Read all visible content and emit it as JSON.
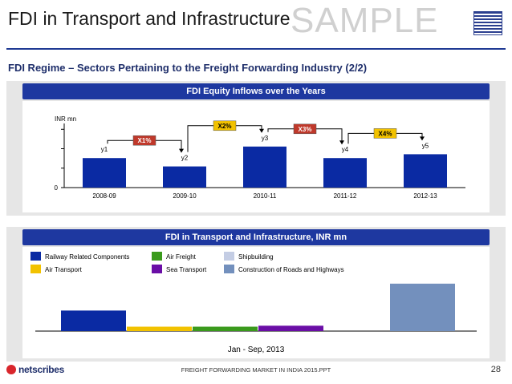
{
  "header": {
    "title": "FDI in Transport and Infrastructure",
    "watermark": "SAMPLE",
    "subtitle": "FDI Regime – Sectors Pertaining to the Freight Forwarding Industry (2/2)"
  },
  "panel1": {
    "title": "FDI Equity Inflows over the Years"
  },
  "panel2": {
    "title": "FDI in Transport and Infrastructure, INR mn"
  },
  "footer": {
    "brand": "netscribes",
    "text": "FREIGHT FORWARDING MARKET IN INDIA 2015.PPT",
    "page": "28"
  },
  "chart_data": [
    {
      "type": "bar",
      "title": "FDI Equity Inflows over the Years",
      "ylabel": "INR mn",
      "ylim": [
        0,
        10
      ],
      "y_tick_labels": [
        "0",
        "",
        "",
        ""
      ],
      "categories": [
        "2008-09",
        "2009-10",
        "2010-11",
        "2011-12",
        "2012-13"
      ],
      "values": [
        4.6,
        3.3,
        6.4,
        4.6,
        5.2
      ],
      "data_labels": [
        "y1",
        "y2",
        "y3",
        "y4",
        "y5"
      ],
      "color": "#0a2aa3",
      "growth_annotations": [
        {
          "label": "X1%",
          "from": 0,
          "to": 1,
          "color": "#c0392b",
          "text_color": "#ffffff"
        },
        {
          "label": "X2%",
          "from": 1,
          "to": 2,
          "color": "#f2c200",
          "text_color": "#000000"
        },
        {
          "label": "X3%",
          "from": 2,
          "to": 3,
          "color": "#c0392b",
          "text_color": "#ffffff"
        },
        {
          "label": "X4%",
          "from": 3,
          "to": 4,
          "color": "#f2c200",
          "text_color": "#000000"
        }
      ]
    },
    {
      "type": "bar",
      "title": "FDI in Transport and Infrastructure, INR mn",
      "xlabel": "Jan - Sep, 2013",
      "ylim": [
        0,
        100
      ],
      "legend_position": "top",
      "series": [
        {
          "name": "Railway Related Components",
          "value": 42,
          "color": "#0a2aa3"
        },
        {
          "name": "Air Transport",
          "value": 9,
          "color": "#f2c200"
        },
        {
          "name": "Air Freight",
          "value": 9,
          "color": "#3a9a1c"
        },
        {
          "name": "Sea Transport",
          "value": 11,
          "color": "#6a0ea6"
        },
        {
          "name": "Shipbuilding",
          "value": 0,
          "color": "#c4cde4"
        },
        {
          "name": "Construction of Roads and Highways",
          "value": 97,
          "color": "#7390bd"
        }
      ]
    }
  ]
}
